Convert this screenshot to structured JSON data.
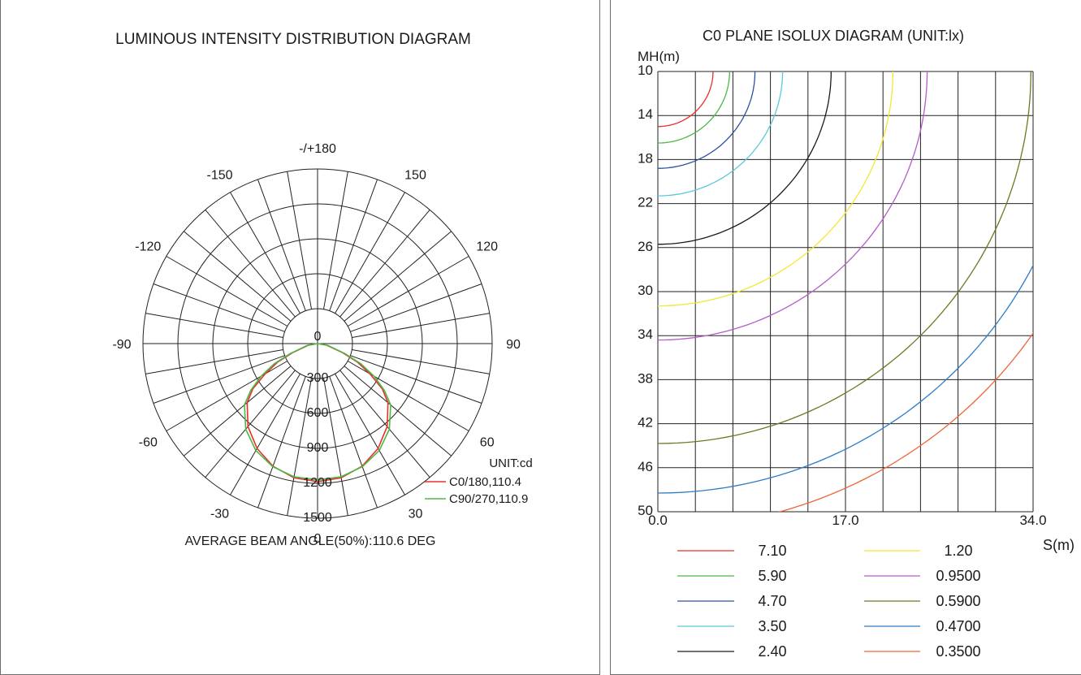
{
  "chart_data": [
    {
      "type": "polar",
      "title": "LUMINOUS INTENSITY DISTRIBUTION DIAGRAM",
      "angle_labels": [
        "-/+180",
        "150",
        "120",
        "90",
        "60",
        "30",
        "0",
        "-30",
        "-60",
        "-90",
        "-120",
        "-150"
      ],
      "radial_labels": [
        "0",
        "300",
        "600",
        "900",
        "1200",
        "1500"
      ],
      "radial_max": 1500,
      "unit_label": "UNIT:cd",
      "series": [
        {
          "name": "C0/180,110.4",
          "color": "#e8302a",
          "angles": [
            0,
            10,
            20,
            30,
            40,
            50,
            55,
            60,
            65,
            70,
            80,
            90
          ],
          "values": [
            1185,
            1170,
            1120,
            1040,
            930,
            790,
            680,
            520,
            380,
            230,
            80,
            0
          ]
        },
        {
          "name": "C90/270,110.9",
          "color": "#4db848",
          "angles": [
            0,
            10,
            20,
            30,
            40,
            50,
            55,
            60,
            65,
            70,
            80,
            90
          ],
          "values": [
            1170,
            1162,
            1125,
            1060,
            960,
            820,
            700,
            560,
            410,
            250,
            90,
            0
          ]
        }
      ],
      "footer": "AVERAGE BEAM ANGLE(50%):110.6 DEG"
    },
    {
      "type": "line",
      "title": "C0 PLANE ISOLUX DIAGRAM (UNIT:lx)",
      "ylabel": "MH(m)",
      "xlabel": "S(m)",
      "y_ticks": [
        "10",
        "14",
        "18",
        "22",
        "26",
        "30",
        "34",
        "38",
        "42",
        "46",
        "50"
      ],
      "x_ticks": [
        "0.0",
        "17.0",
        "34.0"
      ],
      "xlim": [
        0,
        34
      ],
      "ylim": [
        10,
        50
      ],
      "series": [
        {
          "name": "7.10",
          "color": "#e8302a",
          "radius": 5.0
        },
        {
          "name": "5.90",
          "color": "#4db848",
          "radius": 6.5
        },
        {
          "name": "4.70",
          "color": "#2e4fa3",
          "radius": 8.8
        },
        {
          "name": "3.50",
          "color": "#5bc8d8",
          "radius": 11.3
        },
        {
          "name": "2.40",
          "color": "#1a1a1a",
          "radius": 15.7
        },
        {
          "name": "1.20",
          "color": "#f2e830",
          "radius": 21.3
        },
        {
          "name": "0.9500",
          "color": "#b45cc8",
          "radius": 24.4
        },
        {
          "name": "0.5900",
          "color": "#6b7a1e",
          "radius": 33.8
        },
        {
          "name": "0.4700",
          "color": "#2b7cc8",
          "radius": 38.3
        },
        {
          "name": "0.3500",
          "color": "#f0643a",
          "radius": 41.5
        }
      ]
    }
  ]
}
